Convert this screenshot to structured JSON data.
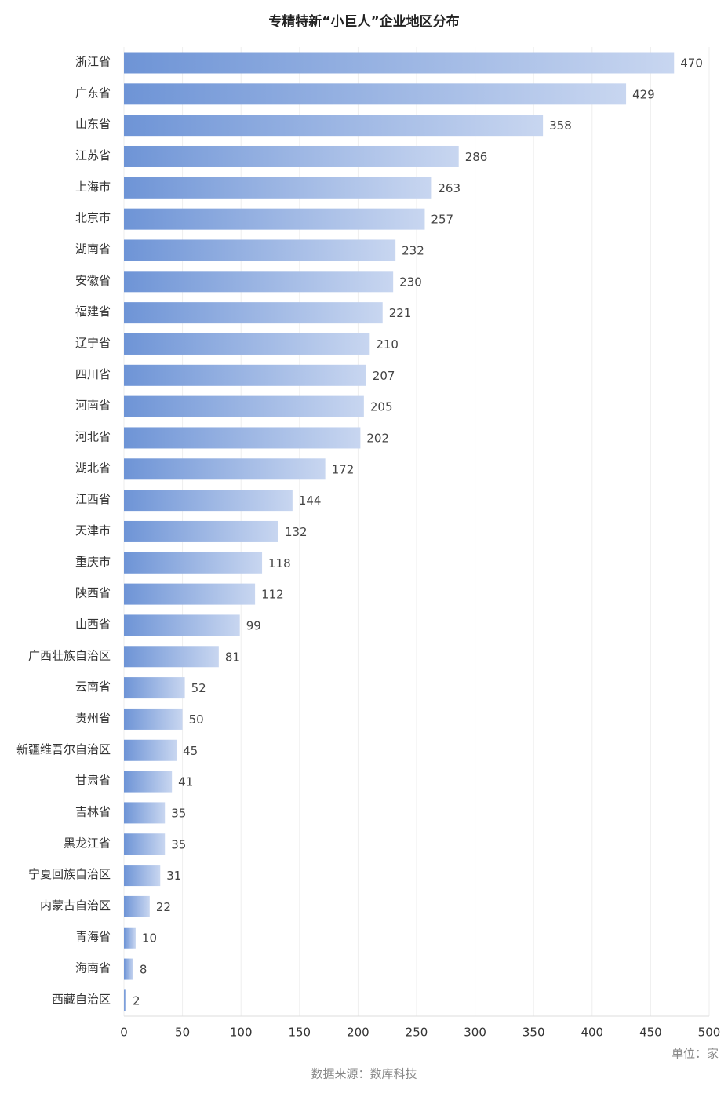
{
  "chart_data": {
    "type": "bar",
    "orientation": "horizontal",
    "title": "专精特新“小巨人”企业地区分布",
    "categories": [
      "浙江省",
      "广东省",
      "山东省",
      "江苏省",
      "上海市",
      "北京市",
      "湖南省",
      "安徽省",
      "福建省",
      "辽宁省",
      "四川省",
      "河南省",
      "河北省",
      "湖北省",
      "江西省",
      "天津市",
      "重庆市",
      "陕西省",
      "山西省",
      "广西壮族自治区",
      "云南省",
      "贵州省",
      "新疆维吾尔自治区",
      "甘肃省",
      "吉林省",
      "黑龙江省",
      "宁夏回族自治区",
      "内蒙古自治区",
      "青海省",
      "海南省",
      "西藏自治区"
    ],
    "values": [
      470,
      429,
      358,
      286,
      263,
      257,
      232,
      230,
      221,
      210,
      207,
      205,
      202,
      172,
      144,
      132,
      118,
      112,
      99,
      81,
      52,
      50,
      45,
      41,
      35,
      35,
      31,
      22,
      10,
      8,
      2
    ],
    "xlim": [
      0,
      500
    ],
    "xticks": [
      0,
      50,
      100,
      150,
      200,
      250,
      300,
      350,
      400,
      450,
      500
    ],
    "grid": true,
    "gradient": [
      "#6e94d6",
      "#c8d6f0"
    ],
    "unit_label": "单位：家",
    "source": "数据来源：数库科技"
  }
}
